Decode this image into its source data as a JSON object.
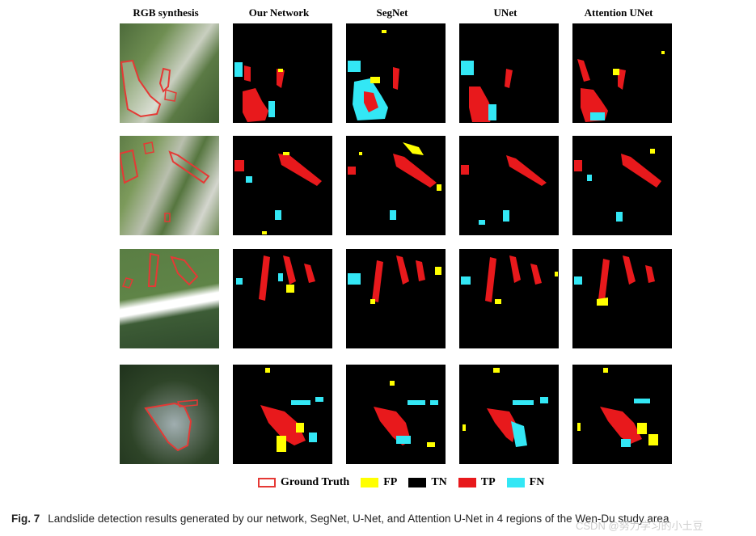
{
  "figure": {
    "columns": [
      "RGB synthesis",
      "Our Network",
      "SegNet",
      "UNet",
      "Attention UNet"
    ],
    "legend": [
      {
        "label": "Ground Truth",
        "color": "#e53935",
        "style": "outline"
      },
      {
        "label": "FP",
        "color": "#ffff00",
        "style": "fill"
      },
      {
        "label": "TN",
        "color": "#000000",
        "style": "fill"
      },
      {
        "label": "TP",
        "color": "#e8191c",
        "style": "fill"
      },
      {
        "label": "FN",
        "color": "#33e7f5",
        "style": "fill"
      }
    ],
    "caption_label": "Fig. 7",
    "caption_text": "Landslide detection results generated by our network, SegNet, U-Net, and Attention U-Net in 4 regions of the Wen-Du study area",
    "watermark": "CSDN @努力学习的小土豆"
  }
}
